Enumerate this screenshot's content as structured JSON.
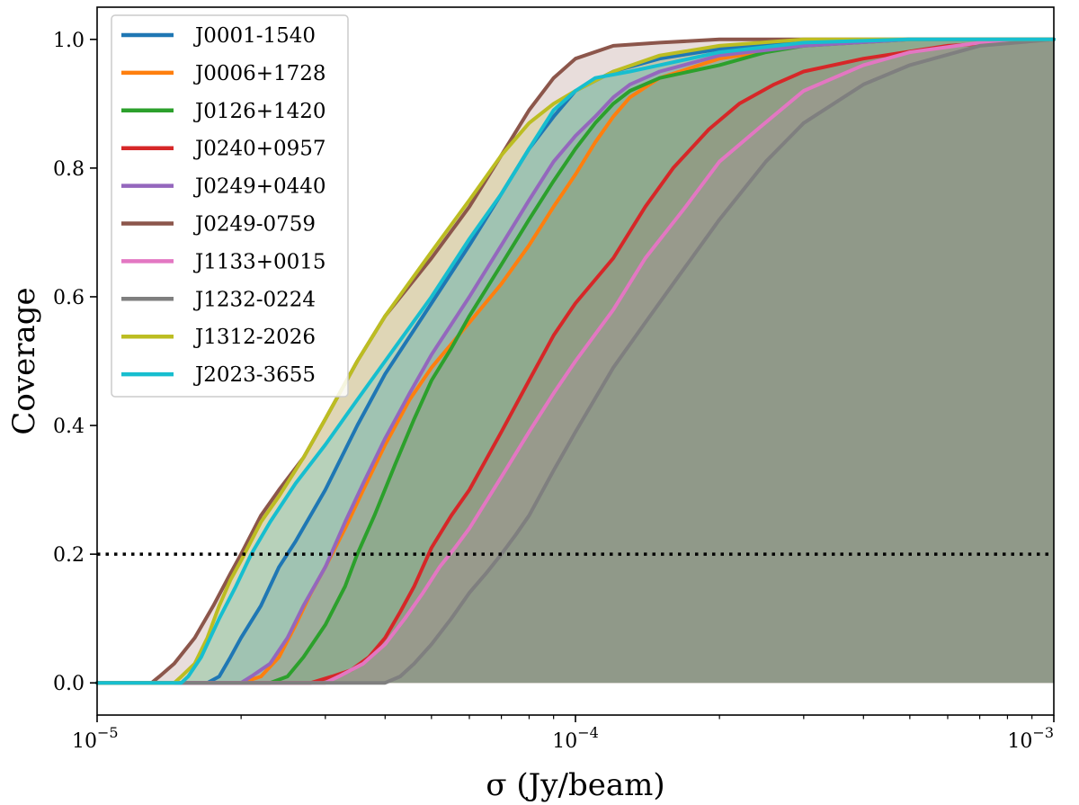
{
  "chart_data": {
    "type": "area",
    "title": "",
    "xlabel": "σ (Jy/beam)",
    "ylabel": "Coverage",
    "xscale": "log",
    "xlim": [
      1e-05,
      0.001
    ],
    "ylim": [
      -0.05,
      1.05
    ],
    "x_ticks": [
      1e-05,
      0.0001,
      0.001
    ],
    "x_tick_labels": [
      {
        "base": "10",
        "exp": "−5"
      },
      {
        "base": "10",
        "exp": "−4"
      },
      {
        "base": "10",
        "exp": "−3"
      }
    ],
    "y_ticks": [
      0.0,
      0.2,
      0.4,
      0.6,
      0.8,
      1.0
    ],
    "y_tick_labels": [
      "0.0",
      "0.2",
      "0.4",
      "0.6",
      "0.8",
      "1.0"
    ],
    "reference_line": {
      "y": 0.2,
      "style": "dotted",
      "color": "#000000"
    },
    "legend_position": "top-left",
    "grid": false,
    "series": [
      {
        "name": "J0001-1540",
        "color": "#1f77b4",
        "points": [
          [
            1e-05,
            0
          ],
          [
            1.4e-05,
            0
          ],
          [
            1.7e-05,
            0.0
          ],
          [
            1.8e-05,
            0.01
          ],
          [
            1.9e-05,
            0.04
          ],
          [
            2e-05,
            0.07
          ],
          [
            2.2e-05,
            0.12
          ],
          [
            2.4e-05,
            0.18
          ],
          [
            2.6e-05,
            0.22
          ],
          [
            3e-05,
            0.3
          ],
          [
            3.5e-05,
            0.4
          ],
          [
            4e-05,
            0.48
          ],
          [
            5e-05,
            0.59
          ],
          [
            6e-05,
            0.68
          ],
          [
            7e-05,
            0.76
          ],
          [
            8e-05,
            0.83
          ],
          [
            9e-05,
            0.88
          ],
          [
            0.0001,
            0.92
          ],
          [
            0.00012,
            0.95
          ],
          [
            0.00015,
            0.97
          ],
          [
            0.0002,
            0.985
          ],
          [
            0.0003,
            0.995
          ],
          [
            0.0005,
            1.0
          ],
          [
            0.001,
            1.0
          ]
        ]
      },
      {
        "name": "J0006+1728",
        "color": "#ff7f0e",
        "points": [
          [
            1e-05,
            0
          ],
          [
            2e-05,
            0
          ],
          [
            2.2e-05,
            0.01
          ],
          [
            2.4e-05,
            0.04
          ],
          [
            2.6e-05,
            0.09
          ],
          [
            2.8e-05,
            0.14
          ],
          [
            3e-05,
            0.18
          ],
          [
            3.3e-05,
            0.24
          ],
          [
            3.6e-05,
            0.3
          ],
          [
            4e-05,
            0.37
          ],
          [
            4.5e-05,
            0.44
          ],
          [
            5e-05,
            0.49
          ],
          [
            6e-05,
            0.56
          ],
          [
            7e-05,
            0.62
          ],
          [
            8e-05,
            0.68
          ],
          [
            9e-05,
            0.74
          ],
          [
            0.0001,
            0.79
          ],
          [
            0.00011,
            0.84
          ],
          [
            0.00012,
            0.88
          ],
          [
            0.00013,
            0.91
          ],
          [
            0.00015,
            0.94
          ],
          [
            0.0002,
            0.97
          ],
          [
            0.0003,
            0.99
          ],
          [
            0.0005,
            1.0
          ],
          [
            0.001,
            1.0
          ]
        ]
      },
      {
        "name": "J0126+1420",
        "color": "#2ca02c",
        "points": [
          [
            1e-05,
            0
          ],
          [
            2.3e-05,
            0
          ],
          [
            2.5e-05,
            0.01
          ],
          [
            2.7e-05,
            0.04
          ],
          [
            3e-05,
            0.09
          ],
          [
            3.3e-05,
            0.15
          ],
          [
            3.5e-05,
            0.2
          ],
          [
            3.8e-05,
            0.26
          ],
          [
            4.2e-05,
            0.34
          ],
          [
            4.6e-05,
            0.41
          ],
          [
            5e-05,
            0.47
          ],
          [
            5.5e-05,
            0.52
          ],
          [
            6e-05,
            0.57
          ],
          [
            7e-05,
            0.65
          ],
          [
            8e-05,
            0.72
          ],
          [
            9e-05,
            0.78
          ],
          [
            0.0001,
            0.83
          ],
          [
            0.00011,
            0.87
          ],
          [
            0.00012,
            0.9
          ],
          [
            0.00013,
            0.92
          ],
          [
            0.00015,
            0.94
          ],
          [
            0.0002,
            0.96
          ],
          [
            0.00025,
            0.98
          ],
          [
            0.0003,
            0.99
          ],
          [
            0.0005,
            1.0
          ],
          [
            0.001,
            1.0
          ]
        ]
      },
      {
        "name": "J0240+0957",
        "color": "#d62728",
        "points": [
          [
            1e-05,
            0
          ],
          [
            2.8e-05,
            0
          ],
          [
            3.1e-05,
            0.01
          ],
          [
            3.4e-05,
            0.02
          ],
          [
            3.7e-05,
            0.04
          ],
          [
            4e-05,
            0.07
          ],
          [
            4.3e-05,
            0.11
          ],
          [
            4.6e-05,
            0.15
          ],
          [
            5e-05,
            0.21
          ],
          [
            5.5e-05,
            0.26
          ],
          [
            6e-05,
            0.3
          ],
          [
            7e-05,
            0.39
          ],
          [
            8e-05,
            0.47
          ],
          [
            9e-05,
            0.54
          ],
          [
            0.0001,
            0.59
          ],
          [
            0.00012,
            0.66
          ],
          [
            0.00014,
            0.74
          ],
          [
            0.00016,
            0.8
          ],
          [
            0.00019,
            0.86
          ],
          [
            0.00022,
            0.9
          ],
          [
            0.00026,
            0.93
          ],
          [
            0.0003,
            0.95
          ],
          [
            0.0004,
            0.97
          ],
          [
            0.0006,
            0.99
          ],
          [
            0.001,
            1.0
          ]
        ]
      },
      {
        "name": "J0249+0440",
        "color": "#9467bd",
        "points": [
          [
            1e-05,
            0
          ],
          [
            2e-05,
            0
          ],
          [
            2.1e-05,
            0.01
          ],
          [
            2.3e-05,
            0.03
          ],
          [
            2.5e-05,
            0.07
          ],
          [
            2.7e-05,
            0.12
          ],
          [
            3e-05,
            0.18
          ],
          [
            3.3e-05,
            0.25
          ],
          [
            3.6e-05,
            0.31
          ],
          [
            4e-05,
            0.38
          ],
          [
            4.5e-05,
            0.45
          ],
          [
            5e-05,
            0.51
          ],
          [
            6e-05,
            0.6
          ],
          [
            7e-05,
            0.68
          ],
          [
            8e-05,
            0.75
          ],
          [
            9e-05,
            0.81
          ],
          [
            0.0001,
            0.85
          ],
          [
            0.00011,
            0.88
          ],
          [
            0.00012,
            0.91
          ],
          [
            0.00013,
            0.93
          ],
          [
            0.00015,
            0.95
          ],
          [
            0.0002,
            0.975
          ],
          [
            0.0003,
            0.99
          ],
          [
            0.0005,
            1.0
          ],
          [
            0.001,
            1.0
          ]
        ]
      },
      {
        "name": "J0249-0759",
        "color": "#8c564b",
        "points": [
          [
            1e-05,
            0
          ],
          [
            1.3e-05,
            0
          ],
          [
            1.35e-05,
            0.01
          ],
          [
            1.45e-05,
            0.03
          ],
          [
            1.6e-05,
            0.07
          ],
          [
            1.75e-05,
            0.12
          ],
          [
            1.9e-05,
            0.17
          ],
          [
            2e-05,
            0.2
          ],
          [
            2.2e-05,
            0.26
          ],
          [
            2.4e-05,
            0.3
          ],
          [
            2.7e-05,
            0.35
          ],
          [
            3e-05,
            0.41
          ],
          [
            3.5e-05,
            0.5
          ],
          [
            4e-05,
            0.57
          ],
          [
            5e-05,
            0.66
          ],
          [
            6e-05,
            0.74
          ],
          [
            7e-05,
            0.82
          ],
          [
            8e-05,
            0.89
          ],
          [
            9e-05,
            0.94
          ],
          [
            0.0001,
            0.97
          ],
          [
            0.00012,
            0.99
          ],
          [
            0.00015,
            0.995
          ],
          [
            0.0002,
            1.0
          ],
          [
            0.001,
            1.0
          ]
        ]
      },
      {
        "name": "J1133+0015",
        "color": "#e377c2",
        "points": [
          [
            1e-05,
            0
          ],
          [
            3e-05,
            0
          ],
          [
            3.2e-05,
            0.01
          ],
          [
            3.6e-05,
            0.03
          ],
          [
            4e-05,
            0.06
          ],
          [
            4.4e-05,
            0.1
          ],
          [
            4.8e-05,
            0.14
          ],
          [
            5.2e-05,
            0.18
          ],
          [
            5.6e-05,
            0.21
          ],
          [
            6e-05,
            0.24
          ],
          [
            7e-05,
            0.32
          ],
          [
            8e-05,
            0.39
          ],
          [
            9e-05,
            0.45
          ],
          [
            0.0001,
            0.5
          ],
          [
            0.00012,
            0.58
          ],
          [
            0.00014,
            0.66
          ],
          [
            0.00017,
            0.74
          ],
          [
            0.0002,
            0.81
          ],
          [
            0.00024,
            0.86
          ],
          [
            0.0003,
            0.92
          ],
          [
            0.0004,
            0.96
          ],
          [
            0.0005,
            0.98
          ],
          [
            0.0007,
            0.995
          ],
          [
            0.001,
            1.0
          ]
        ]
      },
      {
        "name": "J1232-0224",
        "color": "#7f7f7f",
        "points": [
          [
            1e-05,
            0
          ],
          [
            4e-05,
            0
          ],
          [
            4.3e-05,
            0.01
          ],
          [
            4.6e-05,
            0.03
          ],
          [
            5e-05,
            0.06
          ],
          [
            5.5e-05,
            0.1
          ],
          [
            6e-05,
            0.14
          ],
          [
            6.5e-05,
            0.17
          ],
          [
            7e-05,
            0.2
          ],
          [
            7.5e-05,
            0.23
          ],
          [
            8e-05,
            0.26
          ],
          [
            9e-05,
            0.33
          ],
          [
            0.0001,
            0.39
          ],
          [
            0.00012,
            0.49
          ],
          [
            0.00014,
            0.56
          ],
          [
            0.00016,
            0.62
          ],
          [
            0.0002,
            0.72
          ],
          [
            0.00025,
            0.81
          ],
          [
            0.0003,
            0.87
          ],
          [
            0.0004,
            0.93
          ],
          [
            0.0005,
            0.96
          ],
          [
            0.0007,
            0.99
          ],
          [
            0.001,
            1.0
          ]
        ]
      },
      {
        "name": "J1312-2026",
        "color": "#bcbd22",
        "points": [
          [
            1e-05,
            0
          ],
          [
            1.45e-05,
            0
          ],
          [
            1.5e-05,
            0.01
          ],
          [
            1.6e-05,
            0.03
          ],
          [
            1.7e-05,
            0.07
          ],
          [
            1.8e-05,
            0.12
          ],
          [
            1.9e-05,
            0.16
          ],
          [
            2e-05,
            0.19
          ],
          [
            2.2e-05,
            0.25
          ],
          [
            2.4e-05,
            0.29
          ],
          [
            2.7e-05,
            0.35
          ],
          [
            3e-05,
            0.41
          ],
          [
            3.5e-05,
            0.5
          ],
          [
            4e-05,
            0.57
          ],
          [
            5e-05,
            0.67
          ],
          [
            6e-05,
            0.75
          ],
          [
            7e-05,
            0.82
          ],
          [
            8e-05,
            0.87
          ],
          [
            9e-05,
            0.9
          ],
          [
            0.0001,
            0.92
          ],
          [
            0.00012,
            0.95
          ],
          [
            0.00015,
            0.975
          ],
          [
            0.0002,
            0.99
          ],
          [
            0.0003,
            1.0
          ],
          [
            0.001,
            1.0
          ]
        ]
      },
      {
        "name": "J2023-3655",
        "color": "#17becf",
        "points": [
          [
            1e-05,
            0
          ],
          [
            1.5e-05,
            0
          ],
          [
            1.55e-05,
            0.01
          ],
          [
            1.65e-05,
            0.04
          ],
          [
            1.8e-05,
            0.1
          ],
          [
            1.95e-05,
            0.15
          ],
          [
            2.1e-05,
            0.2
          ],
          [
            2.3e-05,
            0.25
          ],
          [
            2.6e-05,
            0.31
          ],
          [
            3e-05,
            0.37
          ],
          [
            3.5e-05,
            0.44
          ],
          [
            4e-05,
            0.5
          ],
          [
            5e-05,
            0.6
          ],
          [
            6e-05,
            0.69
          ],
          [
            7e-05,
            0.76
          ],
          [
            8e-05,
            0.83
          ],
          [
            9e-05,
            0.89
          ],
          [
            0.0001,
            0.92
          ],
          [
            0.00011,
            0.94
          ],
          [
            0.00013,
            0.95
          ],
          [
            0.00015,
            0.96
          ],
          [
            0.0002,
            0.98
          ],
          [
            0.0003,
            0.995
          ],
          [
            0.0005,
            1.0
          ],
          [
            0.001,
            1.0
          ]
        ]
      }
    ]
  }
}
